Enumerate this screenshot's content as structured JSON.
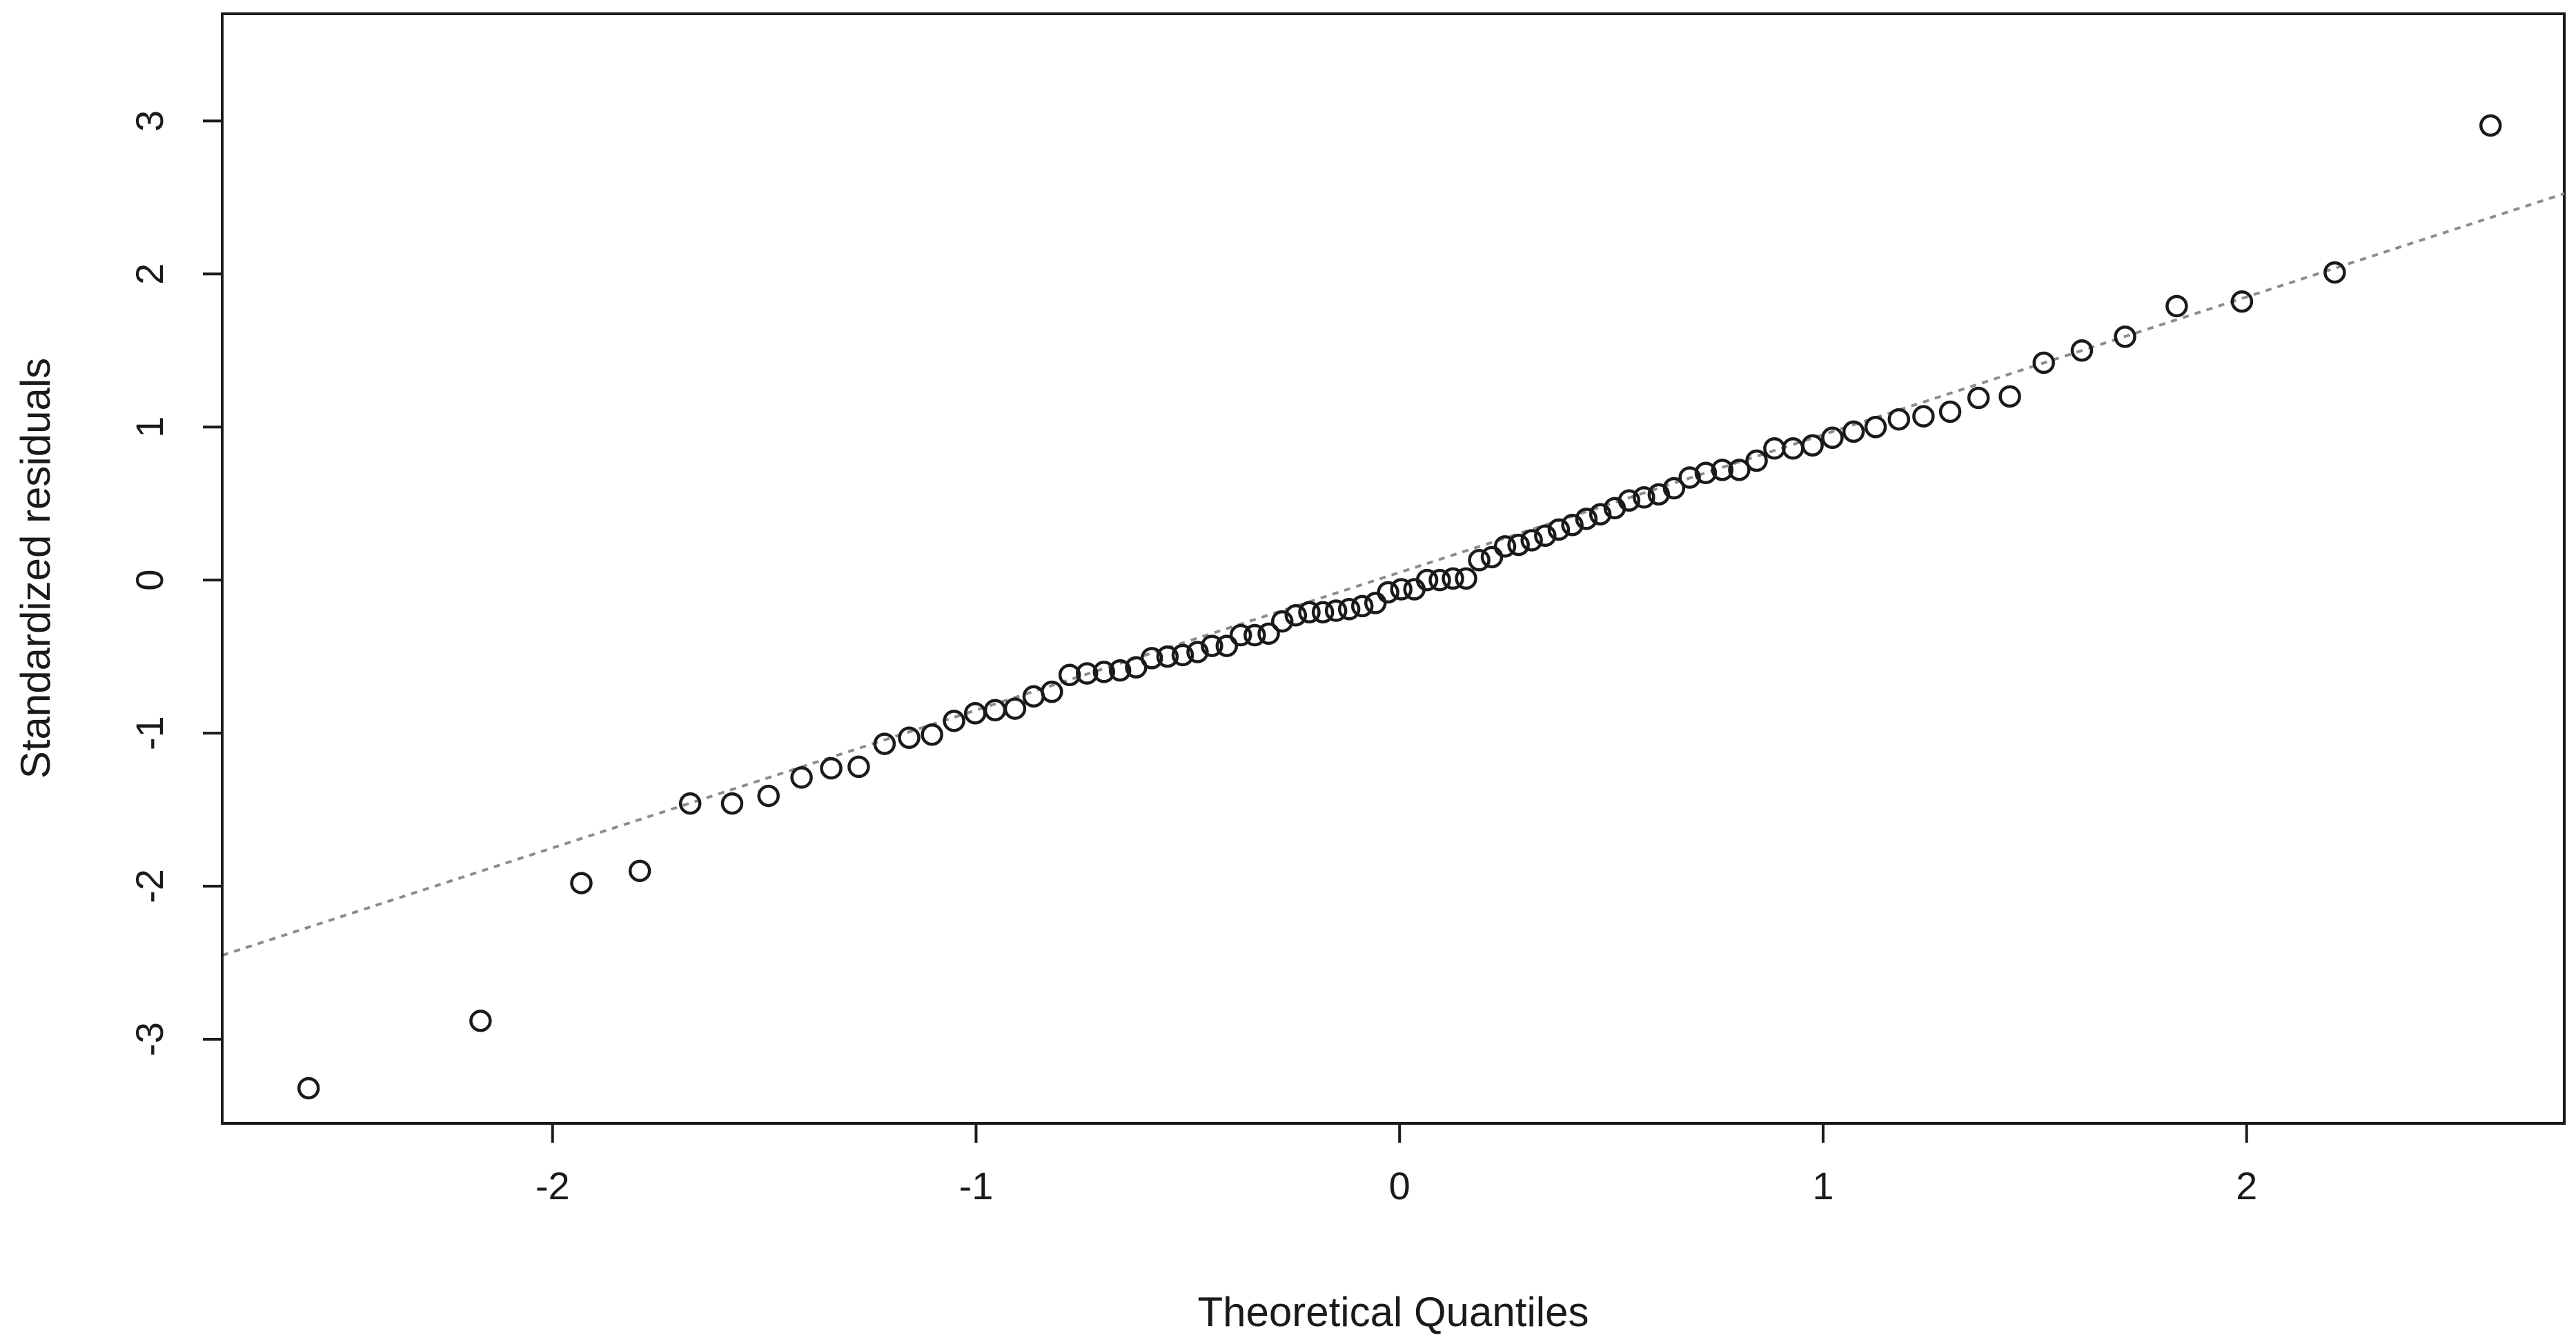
{
  "chart_data": {
    "type": "scatter",
    "title": "",
    "xlabel": "Theoretical Quantiles",
    "ylabel": "Standardized residuals",
    "xlim": [
      -2.78,
      2.75
    ],
    "ylim": [
      -3.55,
      3.7
    ],
    "x_ticks": [
      -2,
      -1,
      0,
      1,
      2
    ],
    "x_tick_labels": [
      "-2",
      "-1",
      "0",
      "1",
      "2"
    ],
    "y_ticks": [
      -3,
      -2,
      -1,
      0,
      1,
      2,
      3
    ],
    "y_tick_labels": [
      "-3",
      "-2",
      "-1",
      "0",
      "1",
      "2",
      "3"
    ],
    "grid": false,
    "legend": "none",
    "reference_line": {
      "style": "dotted",
      "color": "#8c8c8c",
      "intercept": 0.05,
      "slope": 0.9
    },
    "points": {
      "x": [
        -2.576,
        -2.17,
        -1.932,
        -1.794,
        -1.675,
        -1.576,
        -1.49,
        -1.412,
        -1.342,
        -1.277,
        -1.216,
        -1.158,
        -1.104,
        -1.052,
        -1.002,
        -0.955,
        -0.908,
        -0.864,
        -0.821,
        -0.779,
        -0.738,
        -0.698,
        -0.66,
        -0.622,
        -0.585,
        -0.548,
        -0.512,
        -0.477,
        -0.443,
        -0.408,
        -0.375,
        -0.342,
        -0.309,
        -0.277,
        -0.245,
        -0.213,
        -0.181,
        -0.15,
        -0.119,
        -0.088,
        -0.057,
        -0.027,
        0.004,
        0.035,
        0.065,
        0.095,
        0.126,
        0.157,
        0.188,
        0.218,
        0.249,
        0.281,
        0.312,
        0.344,
        0.376,
        0.408,
        0.441,
        0.474,
        0.508,
        0.542,
        0.577,
        0.612,
        0.648,
        0.685,
        0.723,
        0.762,
        0.802,
        0.843,
        0.885,
        0.929,
        0.975,
        1.022,
        1.072,
        1.124,
        1.179,
        1.237,
        1.3,
        1.367,
        1.441,
        1.521,
        1.611,
        1.713,
        1.835,
        1.989,
        2.208,
        2.576
      ],
      "y": [
        -3.32,
        -2.88,
        -1.98,
        -1.9,
        -1.46,
        -1.46,
        -1.41,
        -1.29,
        -1.23,
        -1.22,
        -1.07,
        -1.03,
        -1.01,
        -0.92,
        -0.87,
        -0.85,
        -0.84,
        -0.76,
        -0.73,
        -0.62,
        -0.61,
        -0.6,
        -0.59,
        -0.57,
        -0.51,
        -0.5,
        -0.49,
        -0.47,
        -0.43,
        -0.43,
        -0.36,
        -0.36,
        -0.35,
        -0.27,
        -0.23,
        -0.21,
        -0.21,
        -0.2,
        -0.19,
        -0.17,
        -0.15,
        -0.08,
        -0.06,
        -0.06,
        0.0,
        0.0,
        0.01,
        0.01,
        0.13,
        0.15,
        0.22,
        0.23,
        0.26,
        0.29,
        0.33,
        0.36,
        0.4,
        0.43,
        0.47,
        0.52,
        0.54,
        0.56,
        0.6,
        0.67,
        0.7,
        0.72,
        0.72,
        0.78,
        0.86,
        0.86,
        0.88,
        0.93,
        0.97,
        1.0,
        1.05,
        1.07,
        1.1,
        1.19,
        1.2,
        1.42,
        1.5,
        1.59,
        1.79,
        1.82,
        2.01,
        2.97
      ]
    }
  }
}
